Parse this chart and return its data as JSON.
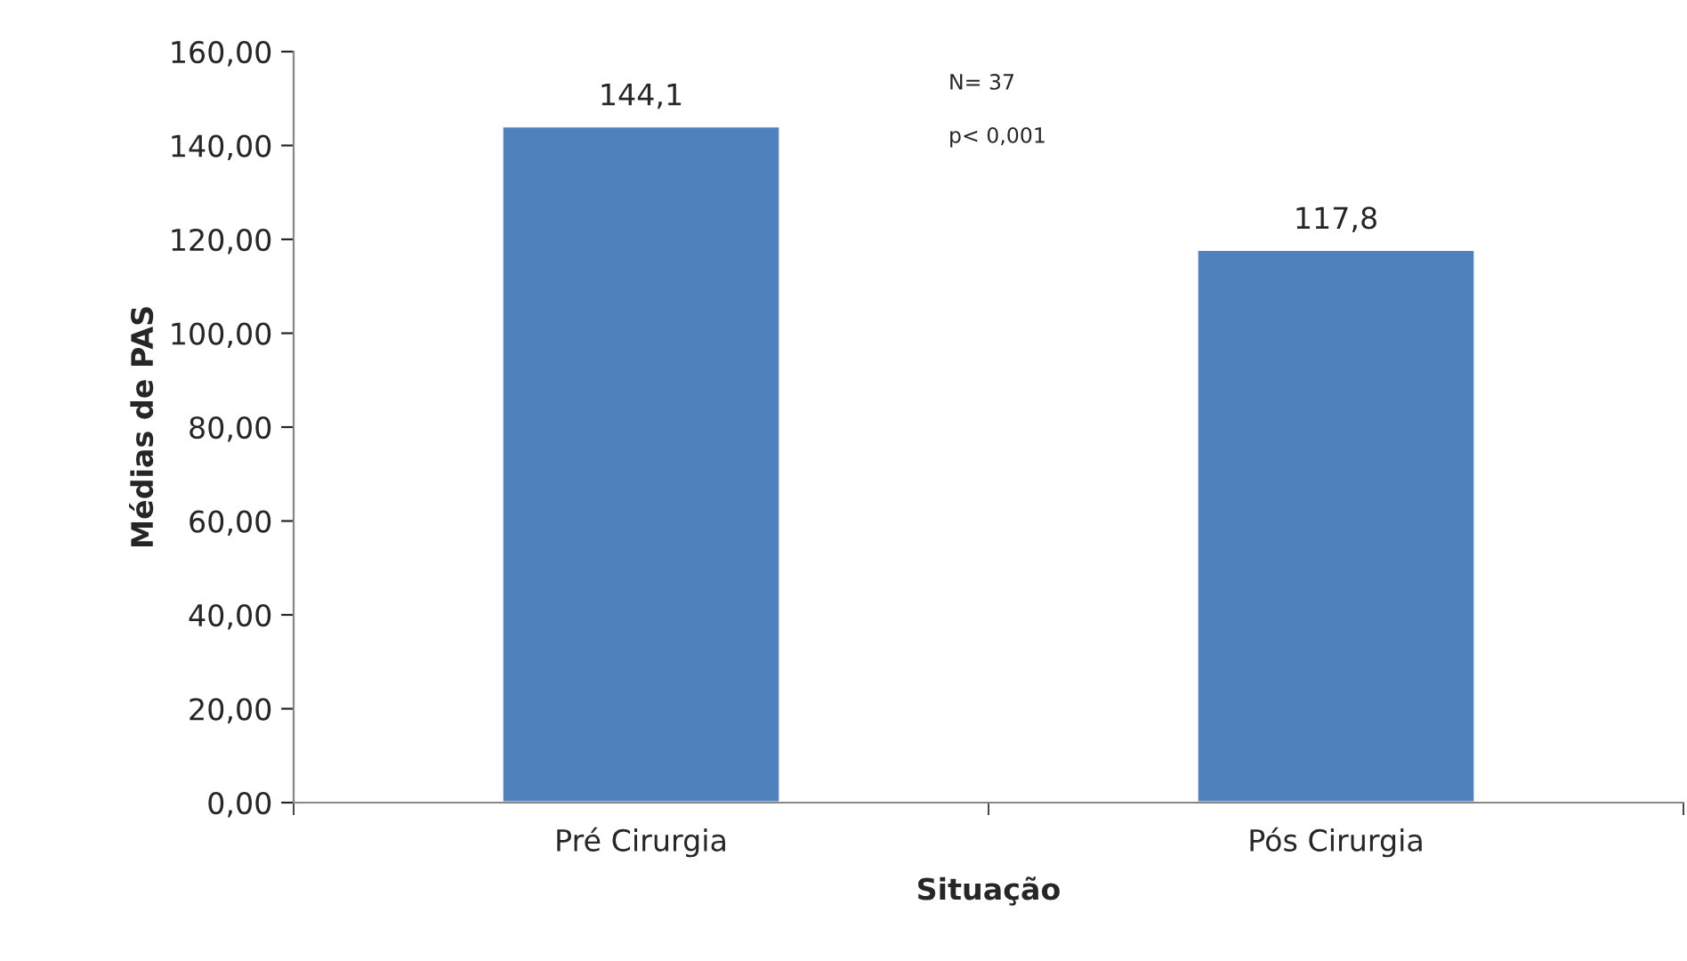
{
  "chart_data": {
    "type": "bar",
    "xlabel": "Situação",
    "ylabel": "Médias de PAS",
    "categories": [
      "Pré Cirurgia",
      "Pós Cirurgia"
    ],
    "values": [
      144.1,
      117.8
    ],
    "color": "#4f81bd",
    "value_labels": [
      "144,1",
      "117,8"
    ],
    "ylim": [
      0,
      160
    ],
    "yticks": [
      {
        "value": 0,
        "label": "0,00"
      },
      {
        "value": 20,
        "label": "20,00"
      },
      {
        "value": 40,
        "label": "40,00"
      },
      {
        "value": 60,
        "label": "60,00"
      },
      {
        "value": 80,
        "label": "80,00"
      },
      {
        "value": 100,
        "label": "100,00"
      },
      {
        "value": 120,
        "label": "120,00"
      },
      {
        "value": 140,
        "label": "140,00"
      },
      {
        "value": 160,
        "label": "160,00"
      }
    ],
    "annotations": [
      "N= 37",
      "p< 0,001"
    ],
    "grid": false,
    "legend": false
  }
}
